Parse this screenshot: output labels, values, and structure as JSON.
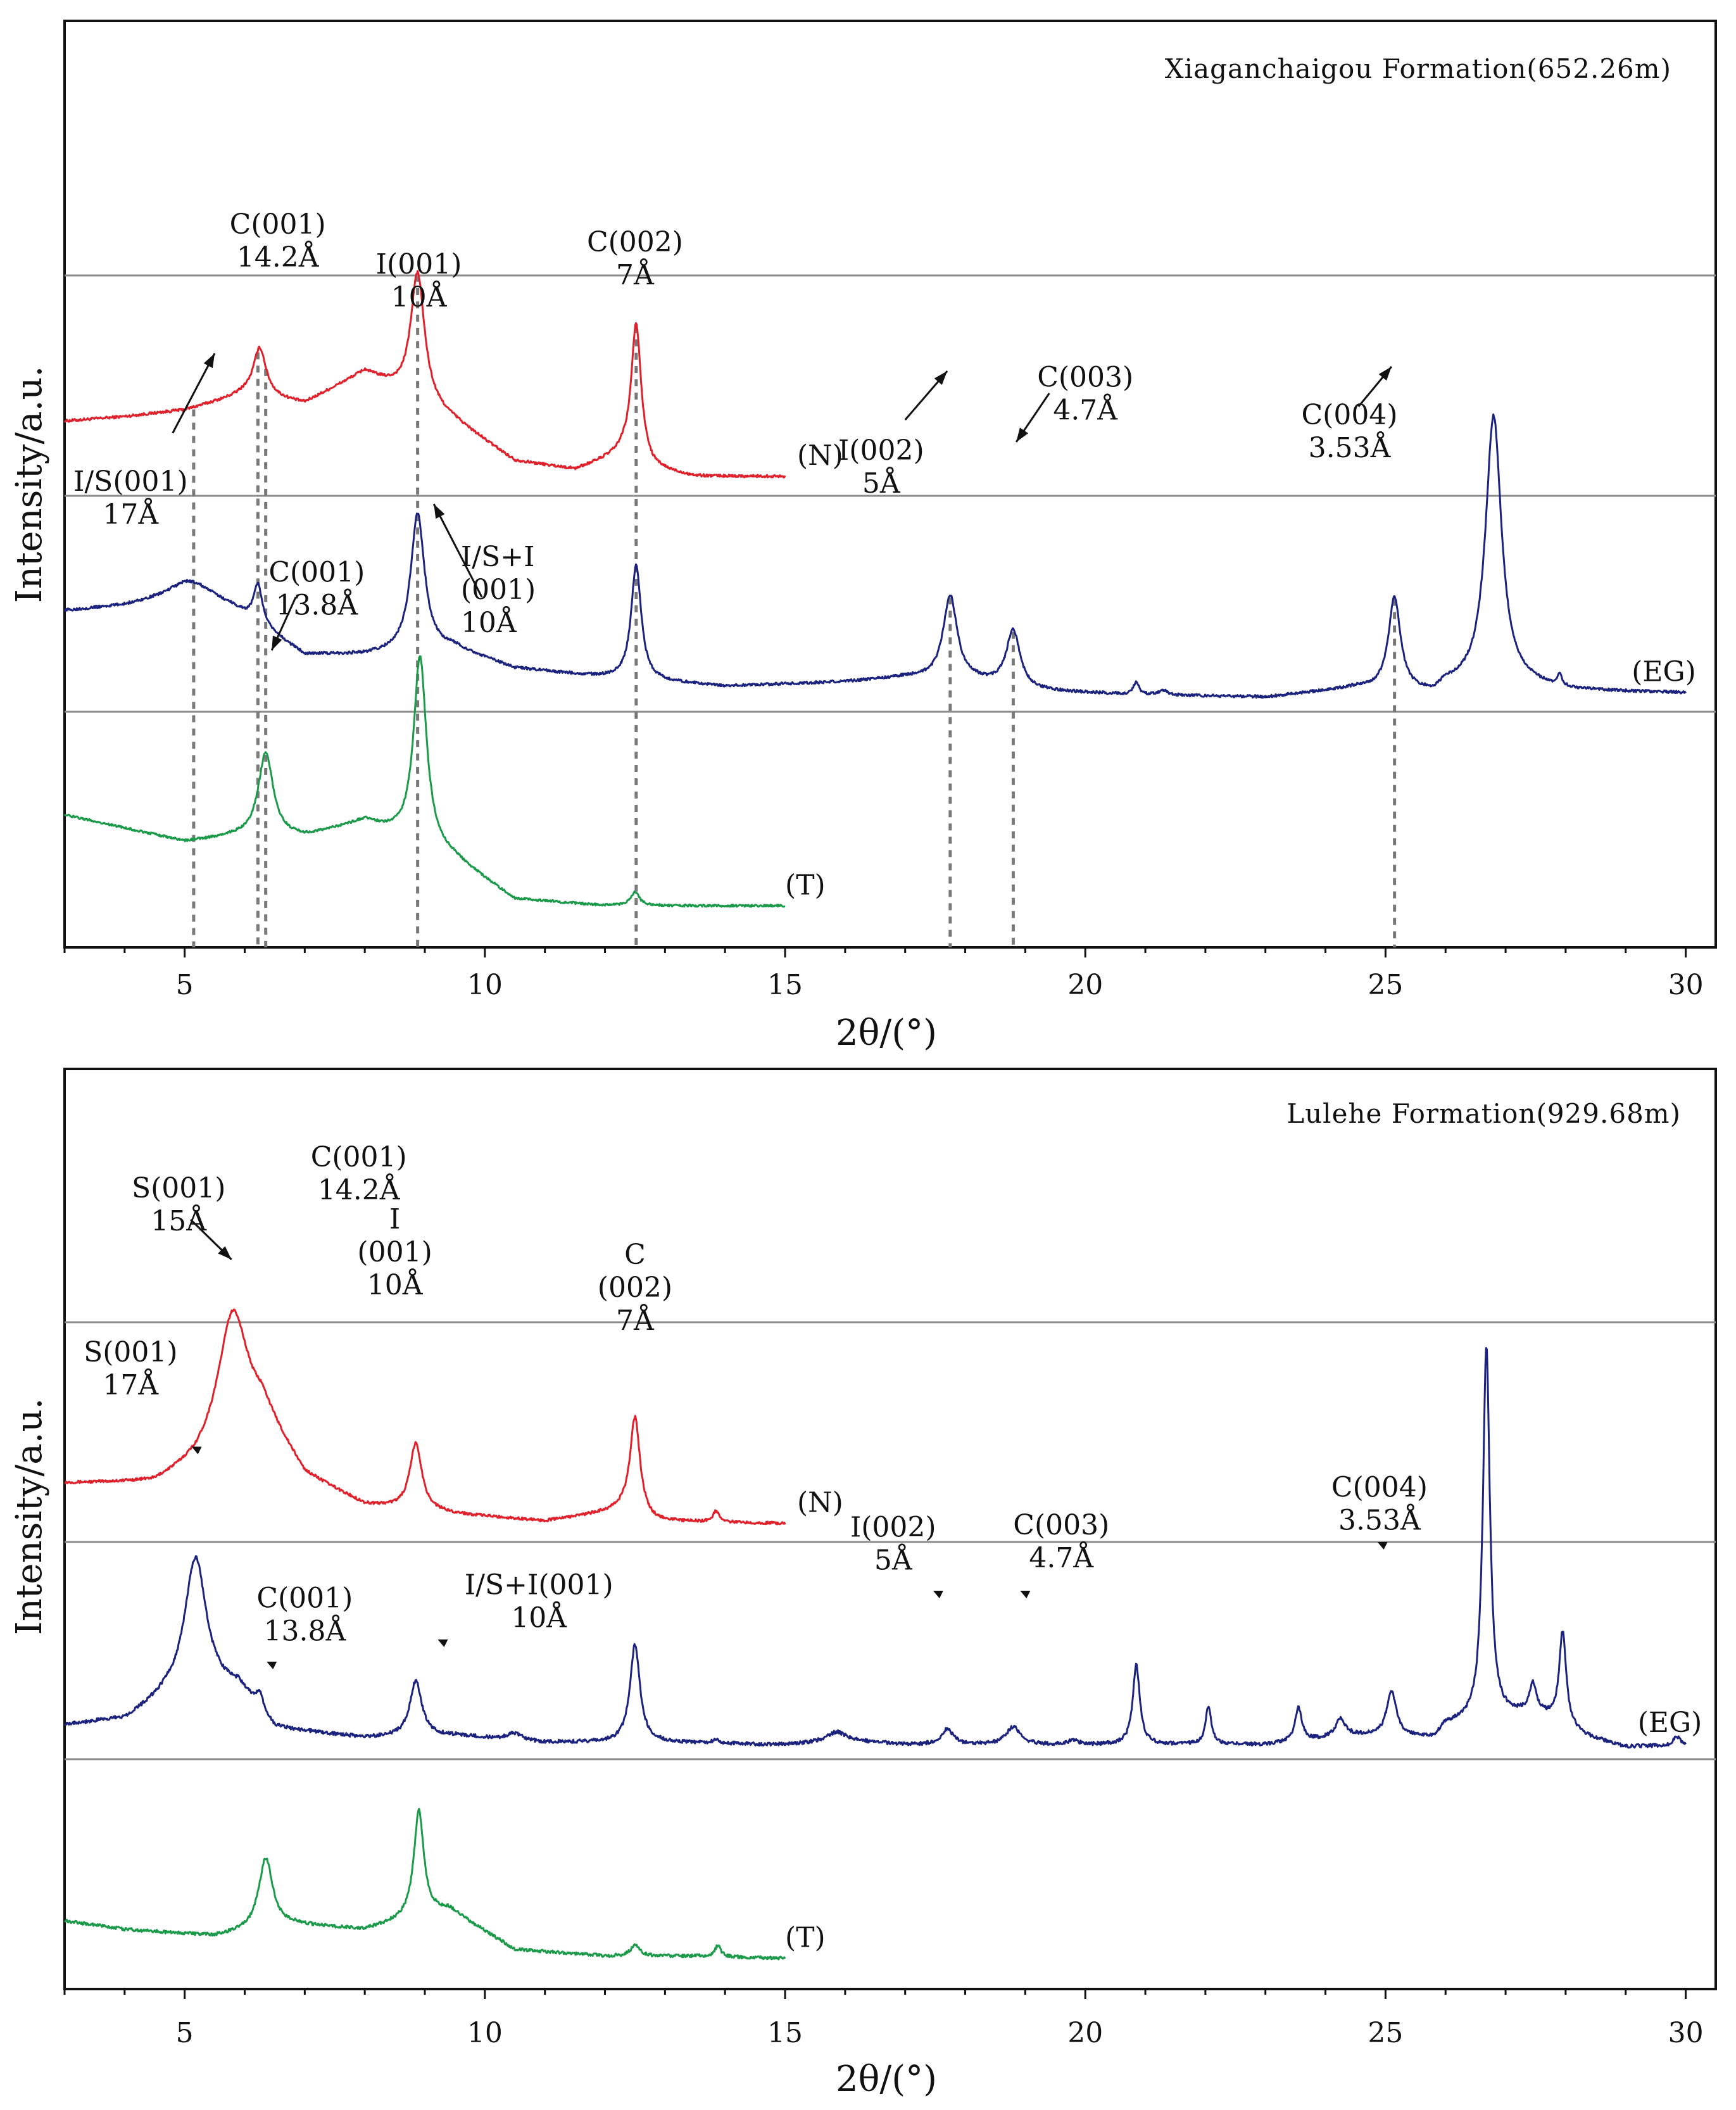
{
  "colors": {
    "N": "#e0202a",
    "EG": "#1b237e",
    "T": "#1b9a4a",
    "axis": "#111111",
    "separator": "#8c8c8c",
    "dash": "#7a7a7a"
  },
  "chart_data": [
    {
      "type": "line",
      "title": "Xiaganchaigou Formation(652.26m)",
      "xlabel": "2θ/(°)",
      "ylabel": "Intensity/a.u.",
      "xlim": [
        3,
        30.5
      ],
      "xticks": [
        5,
        10,
        15,
        20,
        25,
        30
      ],
      "xtick_labels": [
        "5",
        "10",
        "15",
        "20",
        "25",
        "30"
      ],
      "series": [
        {
          "name": "(N)",
          "key": "N",
          "x_range": [
            3,
            15
          ],
          "band": 0,
          "label": "(N)",
          "label_x": 15.2,
          "baseline": [
            [
              3,
              0.3
            ],
            [
              4,
              0.32
            ],
            [
              5,
              0.35
            ],
            [
              6,
              0.42
            ],
            [
              7,
              0.38
            ],
            [
              8,
              0.52
            ],
            [
              9.5,
              0.3
            ],
            [
              10.5,
              0.12
            ],
            [
              11.5,
              0.08
            ],
            [
              12.3,
              0.15
            ],
            [
              12.8,
              0.08
            ],
            [
              13.5,
              0.05
            ],
            [
              15,
              0.05
            ]
          ],
          "peaks": [
            [
              6.25,
              0.22,
              0.13
            ],
            [
              8.88,
              0.58,
              0.14
            ],
            [
              12.52,
              0.62,
              0.1
            ]
          ],
          "noise": 0.006
        },
        {
          "name": "(EG)",
          "key": "EG",
          "x_range": [
            3,
            30
          ],
          "band": 1,
          "label": "(EG)",
          "label_x": 29.1,
          "baseline": [
            [
              3,
              0.42
            ],
            [
              4,
              0.44
            ],
            [
              5,
              0.48
            ],
            [
              5.8,
              0.42
            ],
            [
              7,
              0.22
            ],
            [
              8,
              0.22
            ],
            [
              9.5,
              0.25
            ],
            [
              10.5,
              0.16
            ],
            [
              12,
              0.12
            ],
            [
              13,
              0.1
            ],
            [
              14,
              0.08
            ],
            [
              16,
              0.1
            ],
            [
              17,
              0.12
            ],
            [
              18.2,
              0.1
            ],
            [
              19,
              0.06
            ],
            [
              21,
              0.04
            ],
            [
              23,
              0.03
            ],
            [
              24.5,
              0.07
            ],
            [
              25.8,
              0.04
            ],
            [
              26,
              0.08
            ],
            [
              27.4,
              0.08
            ],
            [
              28,
              0.06
            ],
            [
              30,
              0.05
            ]
          ],
          "peaks": [
            [
              5.15,
              0.08,
              0.5
            ],
            [
              6.22,
              0.18,
              0.09
            ],
            [
              8.88,
              0.62,
              0.14
            ],
            [
              12.52,
              0.52,
              0.1
            ],
            [
              17.75,
              0.38,
              0.14
            ],
            [
              18.8,
              0.26,
              0.14
            ],
            [
              20.85,
              0.06,
              0.05
            ],
            [
              21.3,
              0.02,
              0.1
            ],
            [
              25.15,
              0.42,
              0.12
            ],
            [
              26.8,
              1.22,
              0.16
            ],
            [
              27.9,
              0.05,
              0.05
            ]
          ],
          "noise": 0.006
        },
        {
          "name": "(T)",
          "key": "T",
          "x_range": [
            3,
            15
          ],
          "band": 2,
          "label": "(T)",
          "label_x": 15.0,
          "baseline": [
            [
              3,
              0.48
            ],
            [
              4,
              0.42
            ],
            [
              5,
              0.36
            ],
            [
              5.8,
              0.38
            ],
            [
              7,
              0.38
            ],
            [
              8,
              0.45
            ],
            [
              9.5,
              0.28
            ],
            [
              10.5,
              0.1
            ],
            [
              12,
              0.07
            ],
            [
              13.5,
              0.07
            ],
            [
              15,
              0.07
            ]
          ],
          "peaks": [
            [
              6.35,
              0.38,
              0.15
            ],
            [
              8.92,
              0.85,
              0.13
            ],
            [
              12.5,
              0.06,
              0.09
            ]
          ],
          "noise": 0.005
        }
      ],
      "reference_lines_x": [
        5.15,
        6.22,
        6.35,
        8.88,
        12.52,
        17.75,
        18.8,
        25.15
      ],
      "annotations": [
        {
          "lines": [
            "C(001)",
            "14.2Å"
          ],
          "x": 6.55,
          "y": 0.96,
          "anchor": "middle"
        },
        {
          "lines": [
            "I(001)",
            "10Å"
          ],
          "x": 8.9,
          "y": 1.14,
          "anchor": "middle"
        },
        {
          "lines": [
            "C(002)",
            "7Å"
          ],
          "x": 12.5,
          "y": 1.04,
          "anchor": "middle"
        },
        {
          "lines": [
            "I/S(001)",
            "17Å"
          ],
          "x": 4.1,
          "y": 2.12,
          "anchor": "middle",
          "arrow_from": [
            4.8,
            1.86
          ],
          "arrow_to": [
            5.5,
            1.5
          ]
        },
        {
          "lines": [
            "I(002)",
            "5Å"
          ],
          "x": 16.6,
          "y": 1.98,
          "anchor": "middle",
          "arrow_from": [
            17.0,
            1.8
          ],
          "arrow_to": [
            17.7,
            1.58
          ]
        },
        {
          "lines": [
            "C(003)",
            "4.7Å"
          ],
          "x": 20.0,
          "y": 1.65,
          "anchor": "middle",
          "arrow_from": [
            19.4,
            1.68
          ],
          "arrow_to": [
            18.85,
            1.9
          ]
        },
        {
          "lines": [
            "C(004)",
            "3.53Å"
          ],
          "x": 24.4,
          "y": 1.82,
          "anchor": "middle",
          "arrow_from": [
            24.55,
            1.74
          ],
          "arrow_to": [
            25.1,
            1.56
          ]
        },
        {
          "lines": [
            "C(001)",
            "13.8Å"
          ],
          "x": 7.2,
          "y": 2.53,
          "anchor": "middle",
          "arrow_from": [
            6.85,
            2.6
          ],
          "arrow_to": [
            6.45,
            2.84
          ]
        },
        {
          "lines": [
            "I/S+I",
            "(001)",
            "10Å"
          ],
          "x": 9.6,
          "y": 2.46,
          "anchor": "start",
          "arrow_from": [
            9.95,
            2.6
          ],
          "arrow_to": [
            9.15,
            2.18
          ]
        }
      ]
    },
    {
      "type": "line",
      "title": "Lulehe Formation(929.68m)",
      "xlabel": "2θ/(°)",
      "ylabel": "Intensity/a.u.",
      "xlim": [
        3,
        30.5
      ],
      "xticks": [
        5,
        10,
        15,
        20,
        25,
        30
      ],
      "xtick_labels": [
        "5",
        "10",
        "15",
        "20",
        "25",
        "30"
      ],
      "series": [
        {
          "name": "(N)",
          "key": "N",
          "x_range": [
            3,
            15
          ],
          "band": 0,
          "label": "(N)",
          "label_x": 15.2,
          "baseline": [
            [
              3,
              0.22
            ],
            [
              4.5,
              0.22
            ],
            [
              5.2,
              0.3
            ],
            [
              6.3,
              0.52
            ],
            [
              7,
              0.25
            ],
            [
              8,
              0.12
            ],
            [
              9.5,
              0.08
            ],
            [
              11,
              0.05
            ],
            [
              12.3,
              0.1
            ],
            [
              12.8,
              0.05
            ],
            [
              15,
              0.04
            ]
          ],
          "peaks": [
            [
              5.8,
              0.58,
              0.3
            ],
            [
              8.85,
              0.3,
              0.12
            ],
            [
              12.5,
              0.44,
              0.1
            ],
            [
              13.85,
              0.05,
              0.06
            ]
          ],
          "noise": 0.006
        },
        {
          "name": "(EG)",
          "key": "EG",
          "x_range": [
            3,
            30
          ],
          "band": 1,
          "label": "(EG)",
          "label_x": 29.2,
          "baseline": [
            [
              3,
              0.12
            ],
            [
              4,
              0.14
            ],
            [
              4.7,
              0.24
            ],
            [
              5.9,
              0.28
            ],
            [
              6.5,
              0.1
            ],
            [
              8,
              0.06
            ],
            [
              9.5,
              0.07
            ],
            [
              11,
              0.04
            ],
            [
              13,
              0.04
            ],
            [
              15,
              0.03
            ],
            [
              16,
              0.05
            ],
            [
              17,
              0.03
            ],
            [
              20,
              0.03
            ],
            [
              23,
              0.03
            ],
            [
              24.5,
              0.07
            ],
            [
              25.8,
              0.06
            ],
            [
              26,
              0.12
            ],
            [
              27.5,
              0.18
            ],
            [
              28.3,
              0.07
            ],
            [
              29,
              0.02
            ],
            [
              30,
              0.03
            ]
          ],
          "peaks": [
            [
              5.18,
              0.62,
              0.22
            ],
            [
              6.25,
              0.07,
              0.08
            ],
            [
              8.85,
              0.25,
              0.12
            ],
            [
              10.5,
              0.03,
              0.15
            ],
            [
              12.5,
              0.44,
              0.1
            ],
            [
              13.85,
              0.02,
              0.05
            ],
            [
              15.85,
              0.04,
              0.18
            ],
            [
              17.7,
              0.07,
              0.12
            ],
            [
              18.8,
              0.08,
              0.14
            ],
            [
              19.8,
              0.02,
              0.1
            ],
            [
              20.85,
              0.36,
              0.07
            ],
            [
              22.05,
              0.17,
              0.06
            ],
            [
              23.55,
              0.15,
              0.07
            ],
            [
              24.25,
              0.08,
              0.1
            ],
            [
              25.1,
              0.2,
              0.1
            ],
            [
              26.68,
              1.68,
              0.07
            ],
            [
              27.45,
              0.12,
              0.06
            ],
            [
              27.95,
              0.42,
              0.07
            ],
            [
              29.85,
              0.04,
              0.06
            ]
          ],
          "noise": 0.008
        },
        {
          "name": "(T)",
          "key": "T",
          "x_range": [
            3,
            15
          ],
          "band": 2,
          "label": "(T)",
          "label_x": 15.0,
          "baseline": [
            [
              3,
              0.2
            ],
            [
              4,
              0.16
            ],
            [
              5.5,
              0.13
            ],
            [
              6.8,
              0.18
            ],
            [
              8,
              0.16
            ],
            [
              9.4,
              0.25
            ],
            [
              10.5,
              0.07
            ],
            [
              12,
              0.04
            ],
            [
              13.5,
              0.04
            ],
            [
              15,
              0.03
            ]
          ],
          "peaks": [
            [
              6.35,
              0.32,
              0.14
            ],
            [
              8.9,
              0.48,
              0.1
            ],
            [
              12.5,
              0.05,
              0.09
            ],
            [
              13.88,
              0.05,
              0.06
            ]
          ],
          "noise": 0.007
        }
      ],
      "reference_lines_x": [],
      "annotations": [
        {
          "lines": [
            "C(001)",
            "14.2Å"
          ],
          "x": 7.9,
          "y": 0.44,
          "anchor": "middle"
        },
        {
          "lines": [
            "S(001)",
            "15Å"
          ],
          "x": 4.9,
          "y": 0.58,
          "anchor": "middle",
          "arrow_from": [
            5.1,
            0.68
          ],
          "arrow_to": [
            5.78,
            0.86
          ]
        },
        {
          "lines": [
            "I",
            "(001)",
            "10Å"
          ],
          "x": 8.5,
          "y": 0.72,
          "anchor": "middle"
        },
        {
          "lines": [
            "C",
            "(002)",
            "7Å"
          ],
          "x": 12.5,
          "y": 0.88,
          "anchor": "middle"
        },
        {
          "lines": [
            "S(001)",
            "17Å"
          ],
          "x": 4.1,
          "y": 1.32,
          "anchor": "middle",
          "arrow_to": [
            5.2,
            1.73
          ]
        },
        {
          "lines": [
            "I(002)",
            "5Å"
          ],
          "x": 16.8,
          "y": 2.11,
          "anchor": "middle",
          "arrow_to": [
            17.55,
            2.38
          ]
        },
        {
          "lines": [
            "C(003)",
            "4.7Å"
          ],
          "x": 19.6,
          "y": 2.1,
          "anchor": "middle",
          "arrow_to": [
            19.0,
            2.38
          ]
        },
        {
          "lines": [
            "C(004)",
            "3.53Å"
          ],
          "x": 24.9,
          "y": 1.93,
          "anchor": "middle",
          "arrow_to": [
            24.95,
            2.16
          ]
        },
        {
          "lines": [
            "C(001)",
            "13.8Å"
          ],
          "x": 7.0,
          "y": 2.43,
          "anchor": "middle",
          "arrow_to": [
            6.45,
            2.7
          ]
        },
        {
          "lines": [
            "I/S+I(001)",
            "10Å"
          ],
          "x": 10.9,
          "y": 2.37,
          "anchor": "middle",
          "arrow_to": [
            9.3,
            2.6
          ]
        }
      ]
    }
  ]
}
